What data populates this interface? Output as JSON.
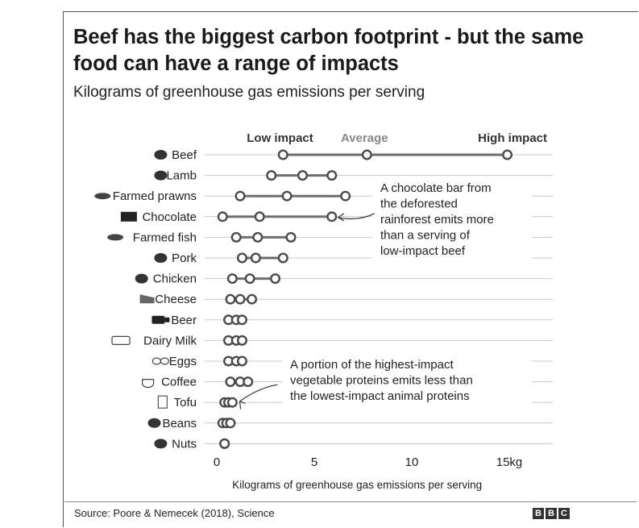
{
  "title": "Beef has the biggest carbon footprint - but the same food can have a range of impacts",
  "subtitle": "Kilograms of greenhouse gas emissions per serving",
  "source": "Source: Poore & Nemecek (2018), Science",
  "logo": [
    "B",
    "B",
    "C"
  ],
  "colors": {
    "line": "#6e6e6e",
    "marker": "#4a4a4a",
    "grid": "#c8c8c8",
    "text": "#222222"
  },
  "chart_data": {
    "type": "dot-range",
    "xlabel": "Kilograms of greenhouse gas emissions per serving",
    "xlim": [
      0,
      16.5
    ],
    "xticks": [
      0,
      5,
      10,
      15
    ],
    "xtick_labels": [
      "0",
      "5",
      "10",
      "15kg"
    ],
    "column_headers": {
      "low": "Low impact",
      "average": "Average",
      "high": "High impact"
    },
    "categories": [
      "Beef",
      "Lamb",
      "Farmed prawns",
      "Chocolate",
      "Farmed fish",
      "Pork",
      "Chicken",
      "Cheese",
      "Beer",
      "Dairy Milk",
      "Eggs",
      "Coffee",
      "Tofu",
      "Beans",
      "Nuts"
    ],
    "icons": [
      "beef-icon",
      "lamb-icon",
      "prawn-icon",
      "chocolate-icon",
      "fish-icon",
      "pork-icon",
      "chicken-icon",
      "cheese-icon",
      "beer-icon",
      "milk-icon",
      "eggs-icon",
      "coffee-icon",
      "tofu-icon",
      "beans-icon",
      "nuts-icon"
    ],
    "series": [
      {
        "name": "Low impact",
        "values": [
          3.4,
          2.8,
          1.2,
          0.3,
          1.0,
          1.3,
          0.8,
          0.7,
          0.6,
          0.6,
          0.6,
          0.7,
          0.4,
          0.3,
          0.4
        ]
      },
      {
        "name": "Average",
        "values": [
          7.7,
          4.4,
          3.6,
          2.2,
          2.1,
          2.0,
          1.7,
          1.2,
          1.0,
          1.0,
          1.0,
          1.2,
          0.6,
          0.5,
          0.4
        ]
      },
      {
        "name": "High impact",
        "values": [
          14.9,
          5.9,
          6.6,
          5.9,
          3.8,
          3.4,
          3.0,
          1.8,
          1.3,
          1.3,
          1.3,
          1.6,
          0.8,
          0.7,
          0.4
        ]
      }
    ],
    "annotations": [
      {
        "lines": [
          "A chocolate bar from",
          "the deforested",
          "rainforest emits more",
          "than a serving of",
          "low-impact beef"
        ],
        "target_category": "Chocolate",
        "target_value": 5.9
      },
      {
        "lines": [
          "A portion of the highest-impact",
          "vegetable proteins emits less than",
          "the lowest-impact animal proteins"
        ],
        "target_category": "Tofu",
        "target_value": 0.8
      }
    ]
  }
}
